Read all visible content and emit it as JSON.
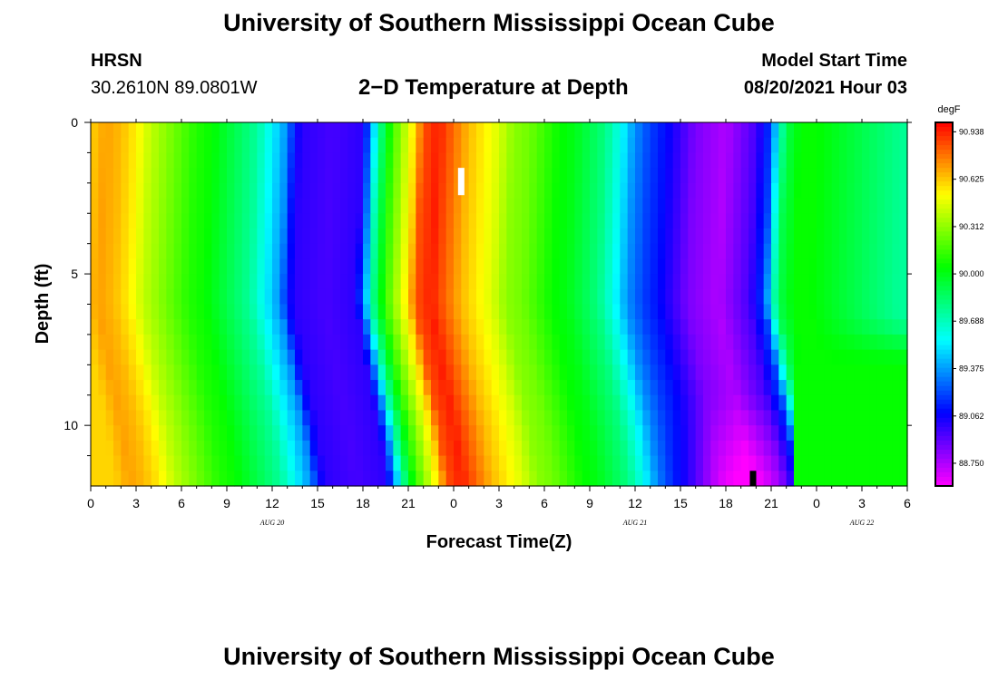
{
  "header": {
    "title": "University of Southern Mississippi Ocean Cube",
    "station": "HRSN",
    "coordinates": "30.2610N  89.0801W",
    "subtitle": "2−D Temperature at Depth",
    "model_start_label": "Model Start Time",
    "model_start_value": "08/20/2021 Hour 03"
  },
  "footer": {
    "title": "University of Southern Mississippi Ocean Cube"
  },
  "chart_data": {
    "type": "heatmap",
    "title": "2−D Temperature at Depth",
    "xlabel": "Forecast Time(Z)",
    "ylabel": "Depth (ft)",
    "x_range_hours": [
      0,
      54
    ],
    "x_tick_step_hours": 3,
    "x_tick_labels": [
      "0",
      "3",
      "6",
      "9",
      "12",
      "15",
      "18",
      "21",
      "0",
      "3",
      "6",
      "9",
      "12",
      "15",
      "18",
      "21",
      "0",
      "3",
      "6"
    ],
    "date_labels": [
      {
        "hour": 12,
        "text": "AUG 20"
      },
      {
        "hour": 36,
        "text": "AUG 21"
      },
      {
        "hour": 51,
        "text": "AUG 22"
      }
    ],
    "y_range_ft": [
      0,
      12
    ],
    "y_ticks": [
      0,
      5,
      10
    ],
    "y_tick_labels": [
      "0",
      "5",
      "10"
    ],
    "color_scale": {
      "unit": "degF",
      "min": 88.6,
      "max": 91.0,
      "labels": [
        "90.938",
        "90.625",
        "90.312",
        "90.000",
        "89.688",
        "89.375",
        "89.062",
        "88.750"
      ],
      "label_values": [
        90.938,
        90.625,
        90.312,
        90.0,
        89.688,
        89.375,
        89.062,
        88.75
      ]
    },
    "surface_profile": {
      "hours": [
        0,
        1,
        2,
        3,
        4,
        5,
        6,
        7,
        8,
        9,
        10,
        11,
        12,
        12.5,
        13,
        13.5,
        14,
        16,
        18,
        18.5,
        19,
        19.5,
        20,
        20.5,
        21,
        21.5,
        22,
        23,
        24,
        25,
        26,
        27,
        28,
        29,
        30,
        31,
        32,
        33,
        34,
        35,
        36,
        37,
        38,
        40,
        42,
        44,
        45,
        45.5,
        46,
        47,
        48,
        49,
        50,
        51,
        52,
        53,
        54
      ],
      "temps": [
        90.6,
        90.7,
        90.65,
        90.55,
        90.4,
        90.3,
        90.2,
        90.1,
        90.05,
        89.95,
        89.85,
        89.75,
        89.55,
        89.45,
        89.35,
        89.1,
        89.0,
        88.95,
        89.0,
        89.3,
        89.7,
        89.95,
        90.15,
        90.3,
        90.45,
        90.6,
        90.85,
        90.95,
        90.8,
        90.65,
        90.55,
        90.45,
        90.3,
        90.25,
        90.15,
        90.05,
        90.0,
        89.9,
        89.8,
        89.6,
        89.35,
        89.2,
        89.1,
        88.85,
        88.75,
        88.95,
        89.2,
        89.6,
        89.9,
        90.05,
        90.05,
        90.0,
        89.95,
        89.9,
        89.85,
        89.8,
        89.75
      ]
    },
    "shift_profile": {
      "depths": [
        0,
        6,
        8,
        10,
        12
      ],
      "shift_hours": [
        0,
        -0.5,
        0.2,
        1.0,
        1.6
      ]
    },
    "bottom_cool": {
      "center_hour": 43.5,
      "width_hours": 4.5,
      "amount": 0.22,
      "start_depth": 9
    },
    "lower_right_green": {
      "start_hour": 46.5,
      "start_depth": 6.5,
      "temp": 90.05
    },
    "markers": [
      {
        "color": "#ffffff",
        "hour": 24.5,
        "depth_start": 1.5,
        "depth_end": 2.4
      },
      {
        "color": "#000000",
        "hour": 43.8,
        "depth_start": 11.5,
        "depth_end": 12
      }
    ]
  }
}
